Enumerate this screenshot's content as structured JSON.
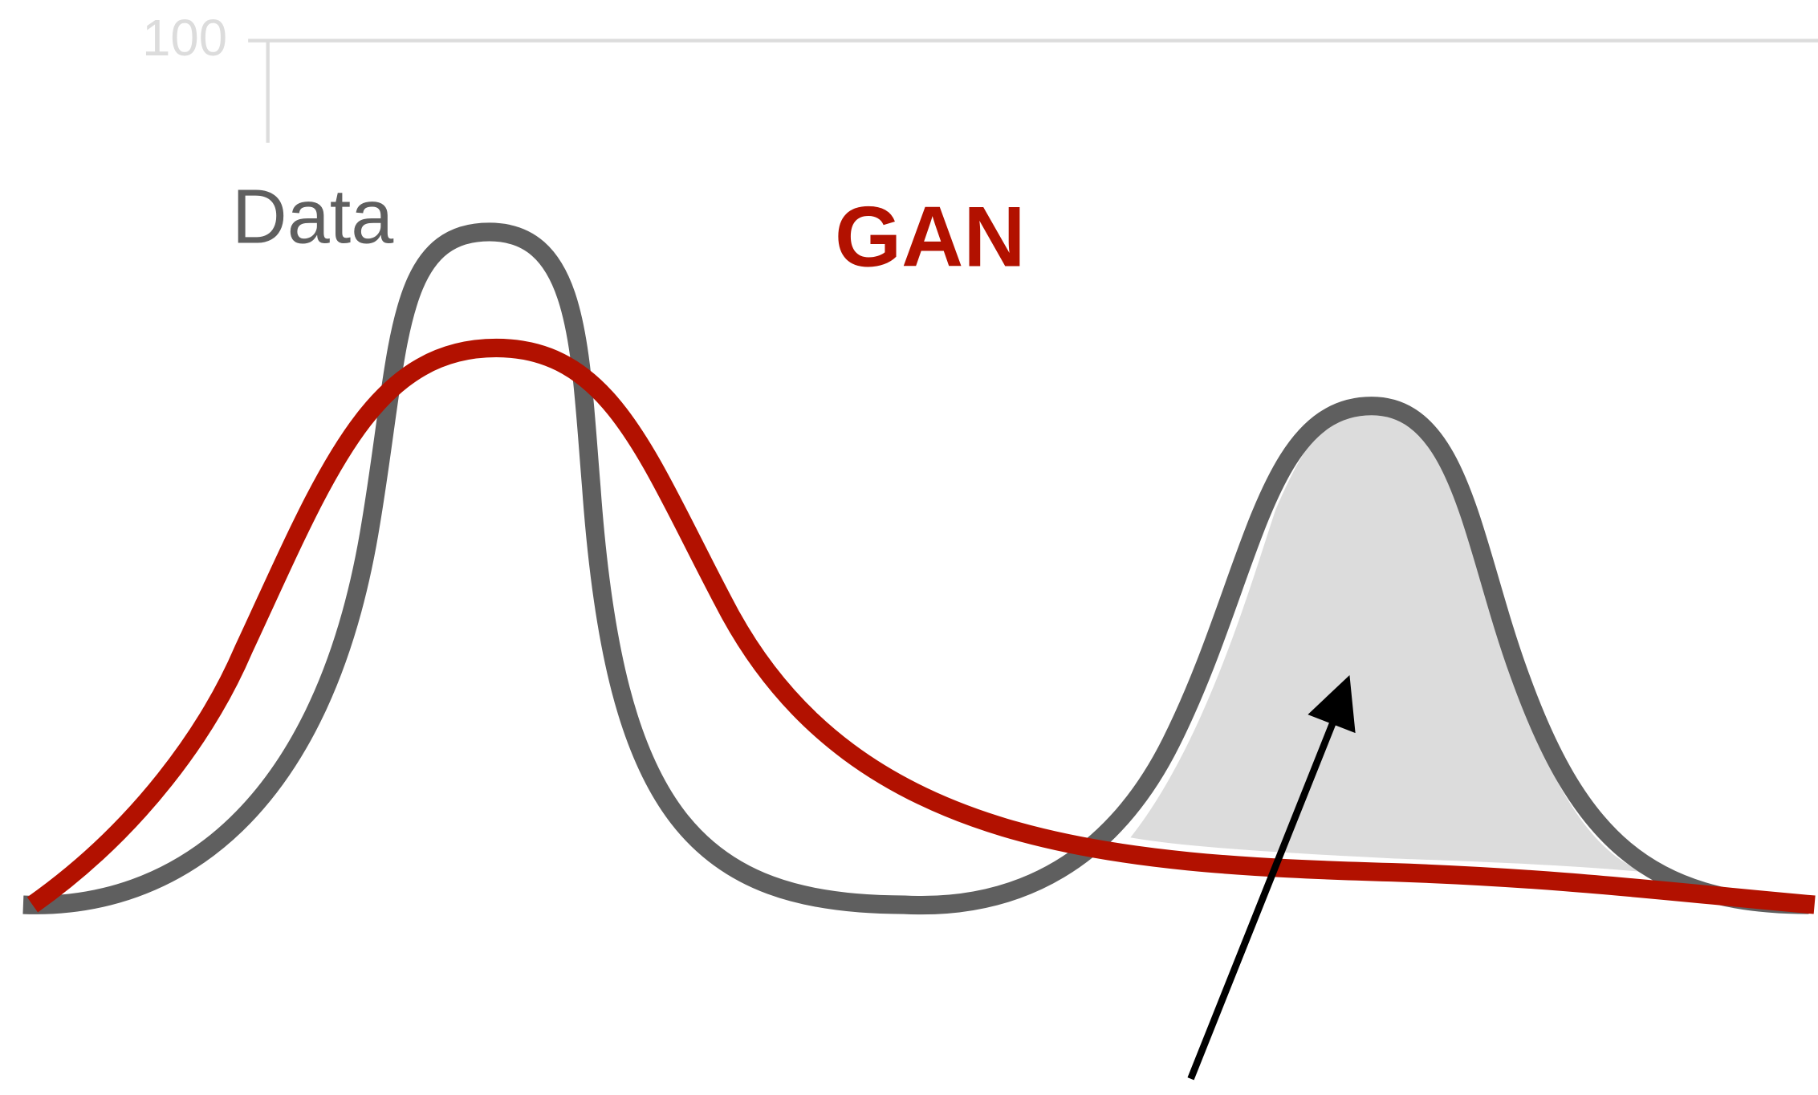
{
  "axis": {
    "tick_label": "100"
  },
  "labels": {
    "data": "Data",
    "gan": "GAN"
  }
}
